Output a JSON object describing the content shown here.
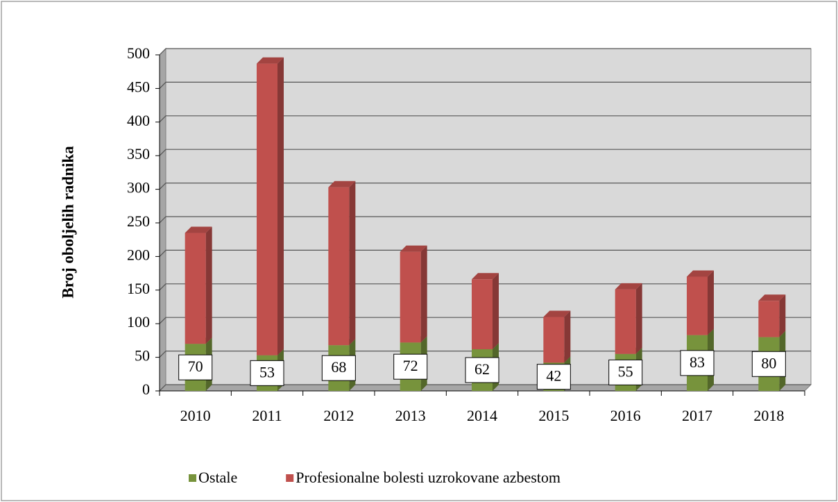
{
  "chart_data": {
    "type": "stacked_bar_3d",
    "y_label": "Broj oboljelih radnika",
    "categories": [
      "2010",
      "2011",
      "2012",
      "2013",
      "2014",
      "2015",
      "2016",
      "2017",
      "2018"
    ],
    "series": [
      {
        "name": "Ostale",
        "color": "#77933c",
        "values": [
          70,
          53,
          68,
          72,
          62,
          42,
          55,
          83,
          80
        ]
      },
      {
        "name": "Profesionalne bolesti uzrokovane azbestom",
        "color": "#c0504d",
        "values": [
          165,
          434,
          235,
          135,
          104,
          68,
          96,
          87,
          54
        ]
      }
    ],
    "data_labels_series": 0,
    "ylim": [
      0,
      500
    ],
    "yticks": [
      0,
      50,
      100,
      150,
      200,
      250,
      300,
      350,
      400,
      450,
      500
    ],
    "grid": true,
    "legend": "bottom"
  }
}
